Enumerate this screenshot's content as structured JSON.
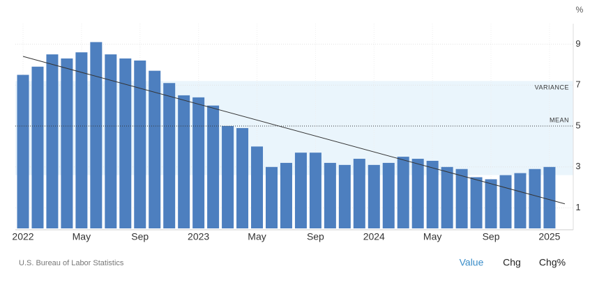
{
  "chart_data": {
    "type": "bar",
    "unit": "%",
    "categories": [
      "2022",
      null,
      null,
      null,
      "May",
      null,
      null,
      null,
      "Sep",
      null,
      null,
      null,
      "2023",
      null,
      null,
      null,
      "May",
      null,
      null,
      null,
      "Sep",
      null,
      null,
      null,
      "2024",
      null,
      null,
      null,
      "May",
      null,
      null,
      null,
      "Sep",
      null,
      null,
      null,
      "2025"
    ],
    "values": [
      7.5,
      7.9,
      8.5,
      8.3,
      8.6,
      9.1,
      8.5,
      8.3,
      8.2,
      7.7,
      7.1,
      6.5,
      6.4,
      6.0,
      5.0,
      4.9,
      4.0,
      3.0,
      3.2,
      3.7,
      3.7,
      3.2,
      3.1,
      3.4,
      3.1,
      3.2,
      3.5,
      3.4,
      3.3,
      3.0,
      2.9,
      2.5,
      2.4,
      2.6,
      2.7,
      2.9,
      3.0
    ],
    "color": "#4d7fbf",
    "ylim": [
      0,
      10
    ],
    "yticks": [
      1,
      3,
      5,
      7,
      9
    ],
    "grid": true,
    "mean": 5,
    "mean_label": "MEAN",
    "variance_band": [
      2.6,
      7.2
    ],
    "variance_label": "VARIANCE",
    "trend": [
      8.4,
      1.2
    ]
  },
  "source": "U.S. Bureau of Labor Statistics",
  "tabs": [
    "Value",
    "Chg",
    "Chg%"
  ]
}
